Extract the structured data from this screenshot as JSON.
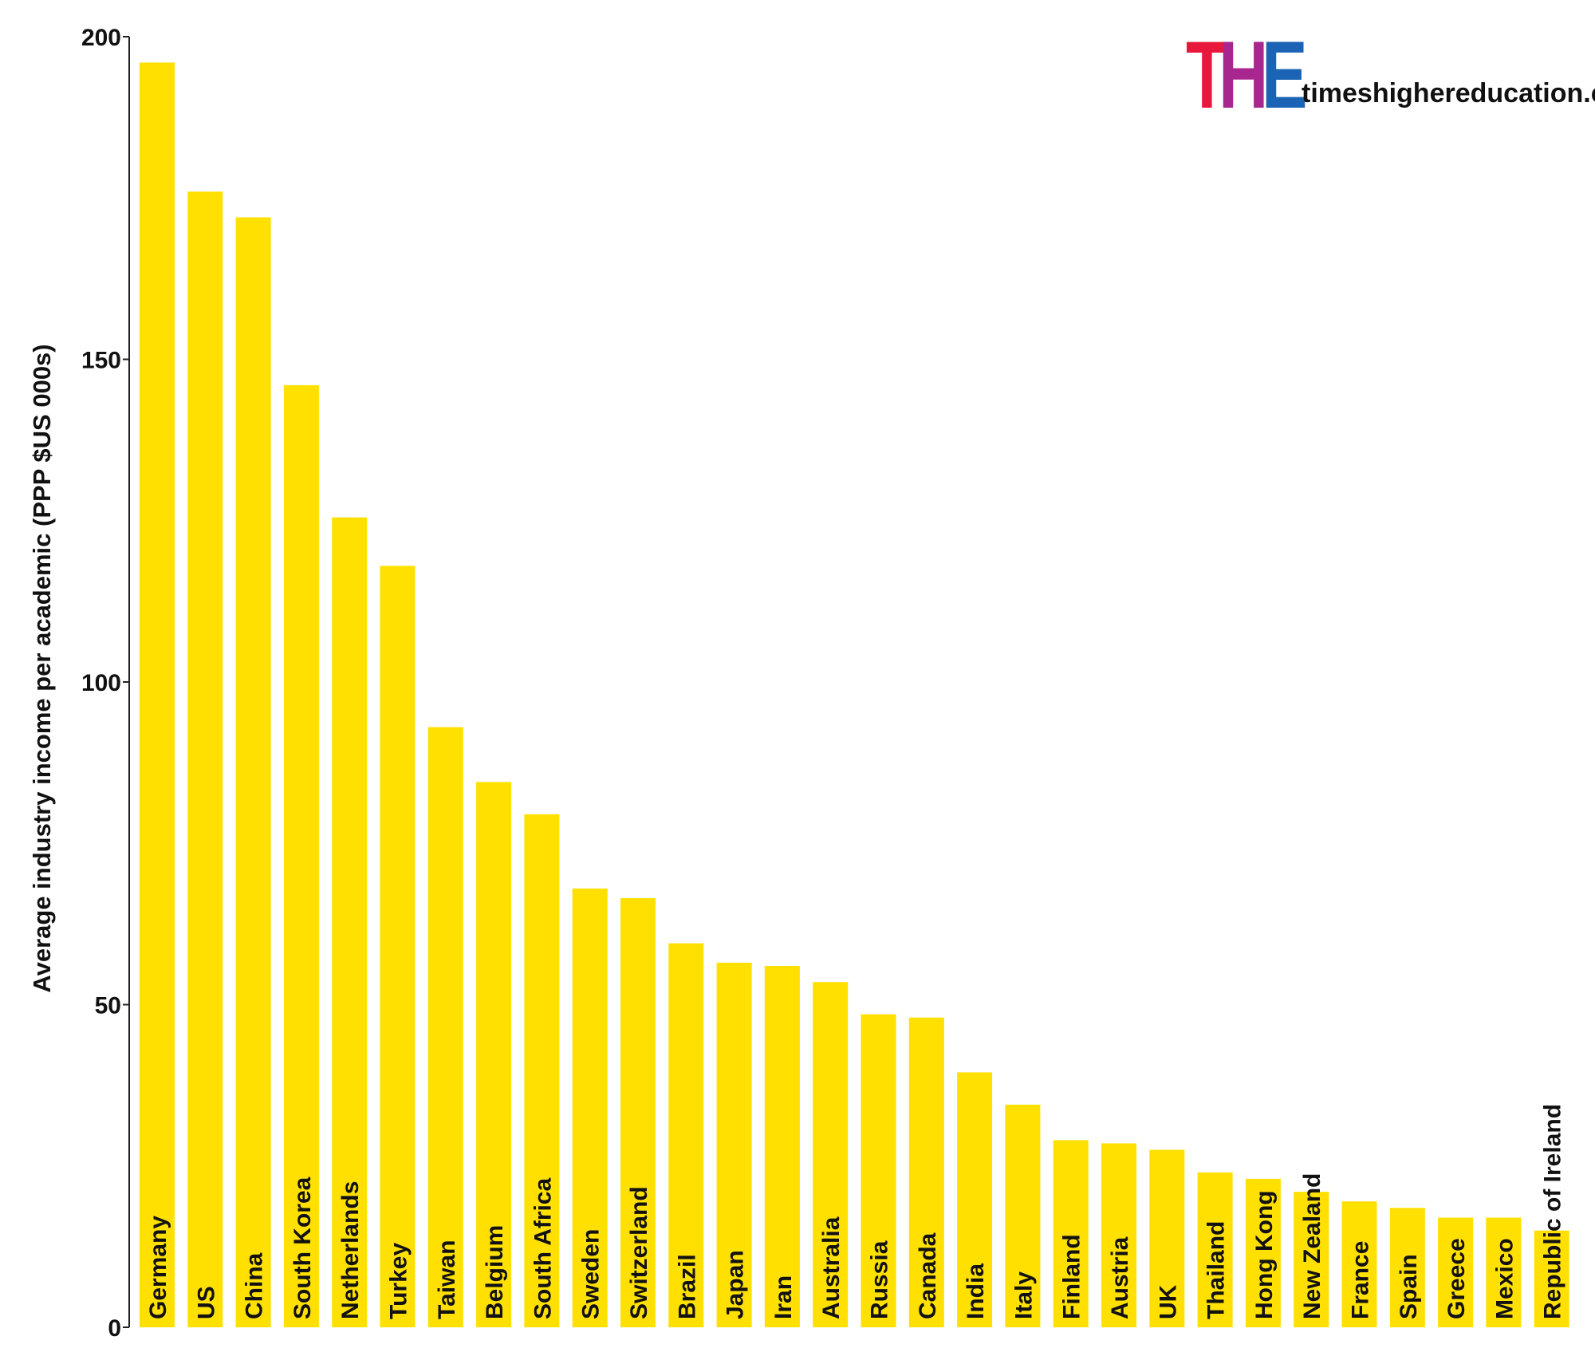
{
  "chart_data": {
    "type": "bar",
    "ylabel": "Average industry income per academic  (PPP $US 000s)",
    "ylim": [
      0,
      200
    ],
    "yticks": [
      0,
      50,
      100,
      150,
      200
    ],
    "bar_color": "#FFE000",
    "grid": false,
    "categories": [
      "Germany",
      "US",
      "China",
      "South Korea",
      "Netherlands",
      "Turkey",
      "Taiwan",
      "Belgium",
      "South Africa",
      "Sweden",
      "Switzerland",
      "Brazil",
      "Japan",
      "Iran",
      "Australia",
      "Russia",
      "Canada",
      "India",
      "Italy",
      "Finland",
      "Austria",
      "UK",
      "Thailand",
      "Hong Kong",
      "New Zealand",
      "France",
      "Spain",
      "Greece",
      "Mexico",
      "Republic of Ireland"
    ],
    "values": [
      196,
      176,
      172,
      146,
      125.5,
      118,
      93,
      84.5,
      79.5,
      68,
      66.5,
      59.5,
      56.5,
      56,
      53.5,
      48.5,
      48,
      39.5,
      34.5,
      29,
      28.5,
      27.5,
      24,
      23,
      21,
      19.5,
      18.5,
      17,
      17,
      15
    ]
  },
  "logo": {
    "letters": [
      "T",
      "H",
      "E"
    ],
    "colors": [
      "#E8183C",
      "#A8278F",
      "#1B63B5"
    ],
    "site": "timeshighereducation.com"
  }
}
